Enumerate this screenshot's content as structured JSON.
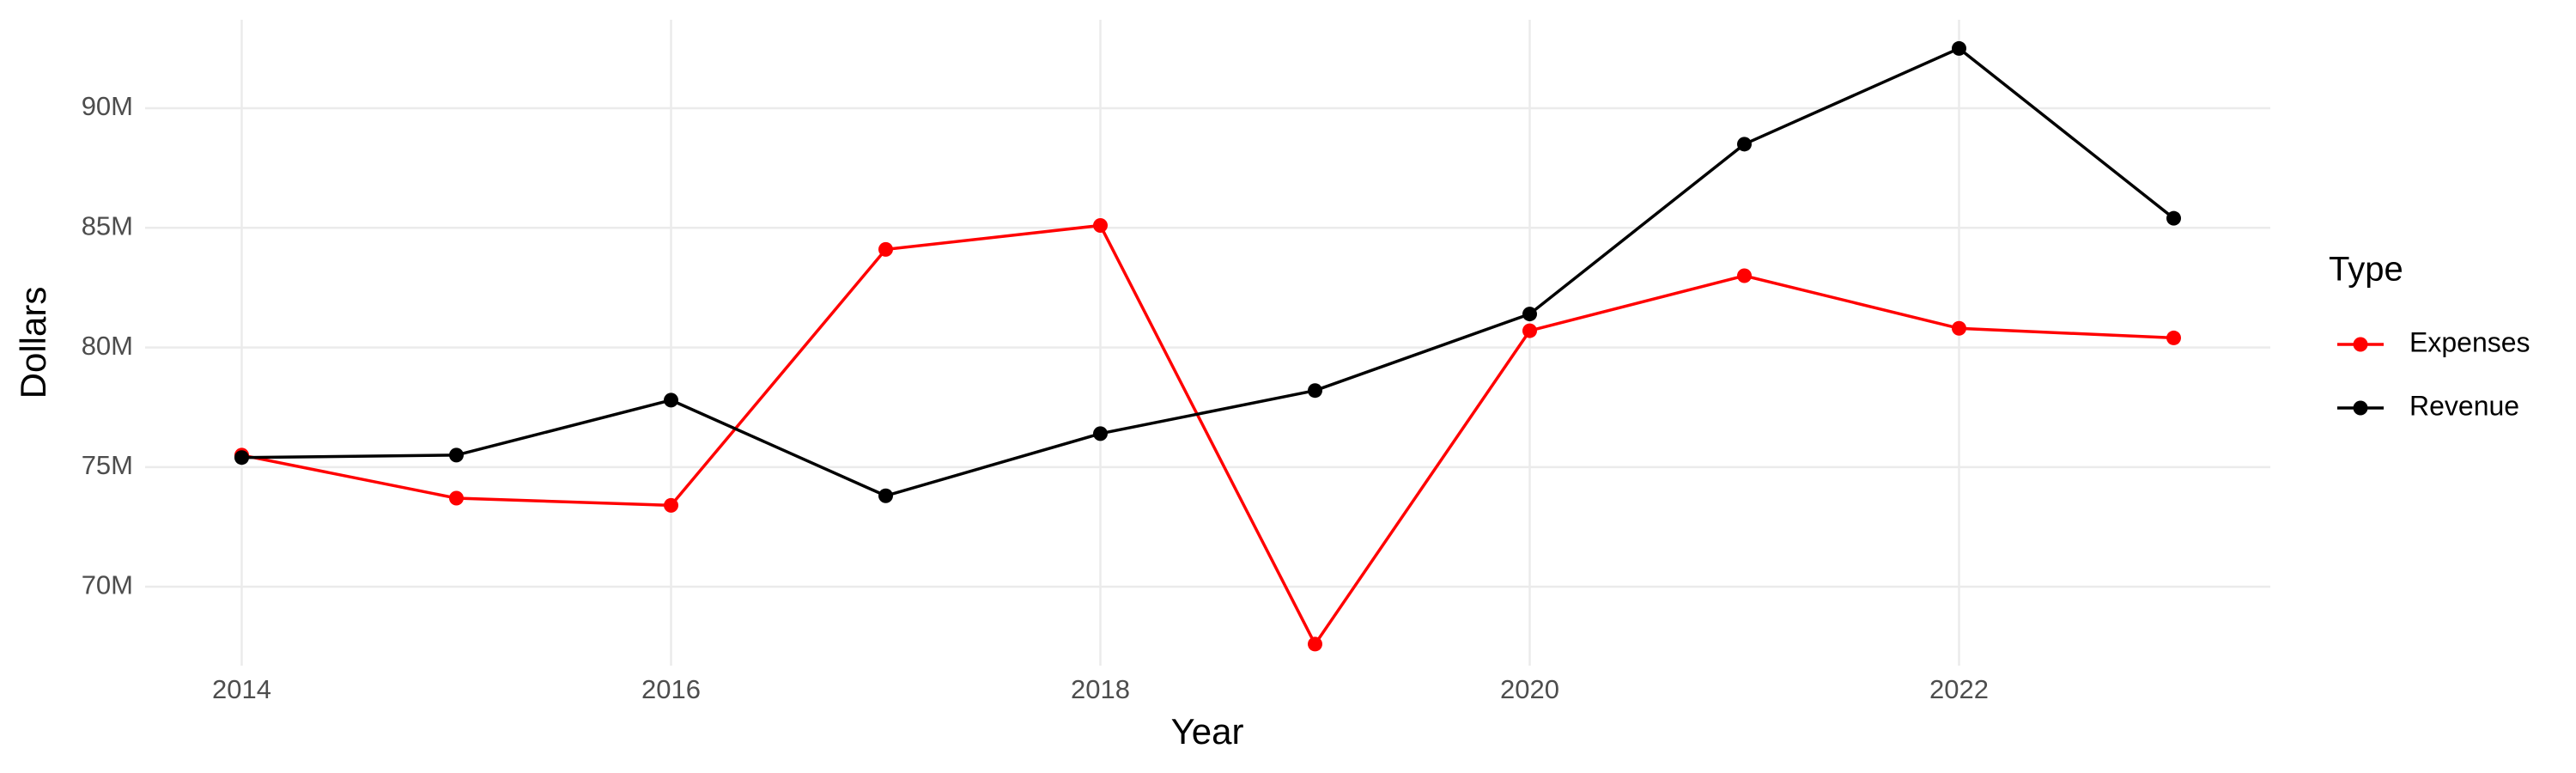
{
  "chart_data": {
    "type": "line",
    "x_label": "Year",
    "y_label": "Dollars",
    "legend_title": "Type",
    "x": [
      2014,
      2015,
      2016,
      2017,
      2018,
      2019,
      2020,
      2021,
      2022,
      2023
    ],
    "series": [
      {
        "name": "Expenses",
        "color": "#ff0000",
        "values": [
          75500000,
          73700000,
          73400000,
          84100000,
          85100000,
          67600000,
          80700000,
          83000000,
          80800000,
          80400000
        ]
      },
      {
        "name": "Revenue",
        "color": "#000000",
        "values": [
          75400000,
          75500000,
          77800000,
          73800000,
          76400000,
          78200000,
          81400000,
          88500000,
          92500000,
          85400000
        ]
      }
    ],
    "xlim": [
      2013.55,
      2023.45
    ],
    "xticks": [
      2014,
      2016,
      2018,
      2020,
      2022
    ],
    "ylim": [
      66700000,
      93700000
    ],
    "yticks": [
      {
        "value": 70000000,
        "label": "70M"
      },
      {
        "value": 75000000,
        "label": "75M"
      },
      {
        "value": 80000000,
        "label": "80M"
      },
      {
        "value": 85000000,
        "label": "85M"
      },
      {
        "value": 90000000,
        "label": "90M"
      }
    ],
    "grid": true,
    "legend": "right"
  }
}
